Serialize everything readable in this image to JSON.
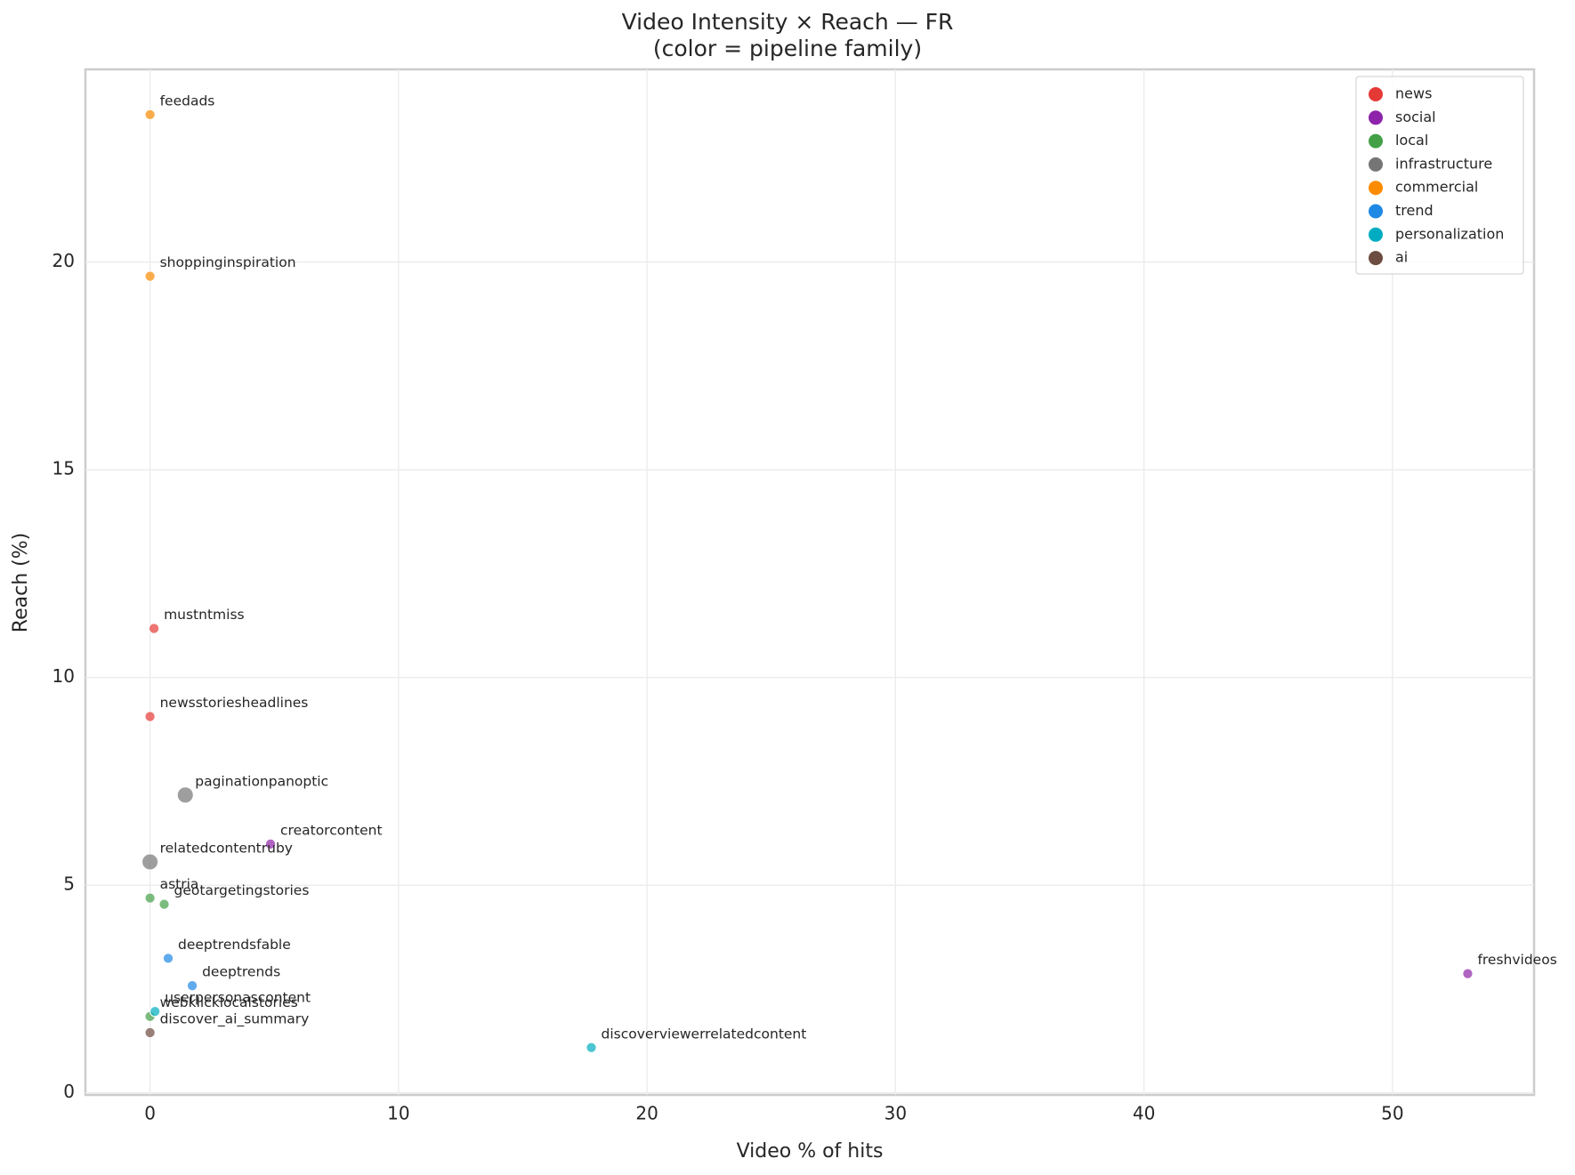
{
  "chart_data": {
    "type": "scatter",
    "title": "Video Intensity × Reach — FR",
    "subtitle": "(color = pipeline family)",
    "x_label": "Video % of hits",
    "y_label": "Reach (%)",
    "xlim": [
      -2.6,
      55.7
    ],
    "ylim": [
      -0.05,
      24.64
    ],
    "xticks": [
      0,
      10,
      20,
      30,
      40,
      50
    ],
    "yticks": [
      0,
      5,
      10,
      15,
      20
    ],
    "grid": true,
    "legend": "upper right",
    "series": [
      {
        "name": "news",
        "color": "#e53935",
        "marker_size": 5,
        "x": [
          0.16,
          0
        ],
        "values": [
          11.18,
          9.06
        ],
        "labels": [
          "mustntmiss",
          "newsstoriesheadlines"
        ]
      },
      {
        "name": "social",
        "color": "#8e24aa",
        "marker_size": 5,
        "x": [
          4.85,
          53.03
        ],
        "values": [
          5.99,
          2.87
        ],
        "labels": [
          "creatorcontent",
          "freshvideos"
        ]
      },
      {
        "name": "local",
        "color": "#43a047",
        "marker_size": 5,
        "x": [
          0,
          0.57,
          0
        ],
        "values": [
          4.69,
          4.54,
          1.84
        ],
        "labels": [
          "astria",
          "geotargetingstories",
          "webklicklocalstories"
        ]
      },
      {
        "name": "infrastructure",
        "color": "#757575",
        "marker_size": 8,
        "x": [
          1.42,
          0
        ],
        "values": [
          7.17,
          5.56
        ],
        "labels": [
          "paginationpanoptic",
          "relatedcontentruby"
        ]
      },
      {
        "name": "commercial",
        "color": "#fb8c00",
        "marker_size": 5,
        "x": [
          0,
          0
        ],
        "values": [
          23.55,
          19.66
        ],
        "labels": [
          "feedads",
          "shoppinginspiration"
        ]
      },
      {
        "name": "trend",
        "color": "#1e88e5",
        "marker_size": 5,
        "x": [
          0.73,
          1.7
        ],
        "values": [
          3.24,
          2.58
        ],
        "labels": [
          "deeptrendsfable",
          "deeptrends"
        ]
      },
      {
        "name": "personalization",
        "color": "#00acc1",
        "marker_size": 5,
        "x": [
          0.2,
          17.76
        ],
        "values": [
          1.96,
          1.09
        ],
        "labels": [
          "userpersonascontent",
          "discoverviewerrelatedcontent"
        ]
      },
      {
        "name": "ai",
        "color": "#6d4c41",
        "marker_size": 5,
        "x": [
          0
        ],
        "values": [
          1.45
        ],
        "labels": [
          "discover_ai_summary"
        ]
      }
    ]
  }
}
